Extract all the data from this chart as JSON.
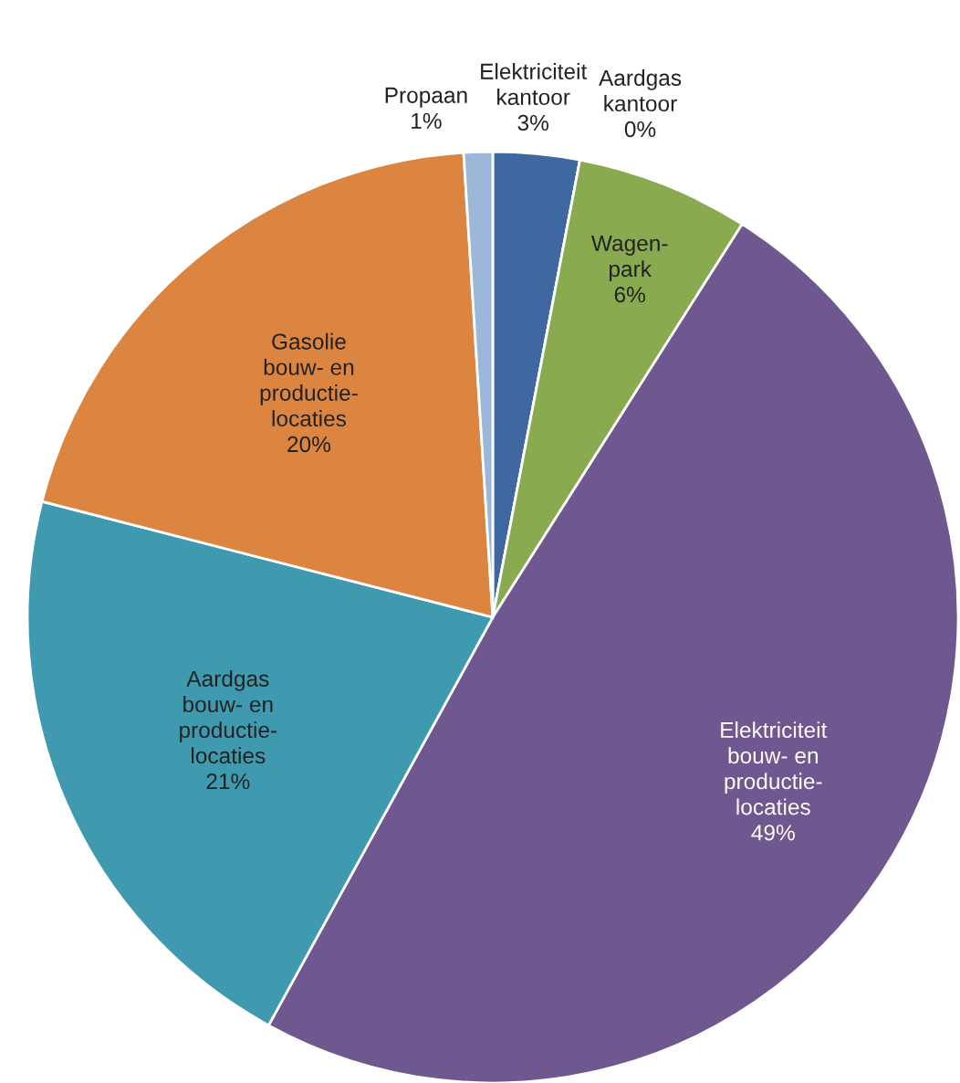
{
  "chart_data": {
    "type": "pie",
    "categories": [
      "Elektriciteit\nkantoor",
      "Aardgas\nkantoor",
      "Wagen-\npark",
      "Elektriciteit\nbouw- en\nproductie-\nlocaties",
      "Aardgas\nbouw- en\nproductie-\nlocaties",
      "Gasolie\nbouw- en\nproductie-\nlocaties",
      "Propaan"
    ],
    "values": [
      3,
      0,
      6,
      49,
      21,
      20,
      1
    ],
    "colors": [
      "#3f68a0",
      "#f2d6d6",
      "#8aaa4f",
      "#6f578f",
      "#3f9ab0",
      "#dc8540",
      "#9db7d9"
    ],
    "value_labels": [
      "3%",
      "0%",
      "6%",
      "49%",
      "21%",
      "20%",
      "1%"
    ]
  }
}
